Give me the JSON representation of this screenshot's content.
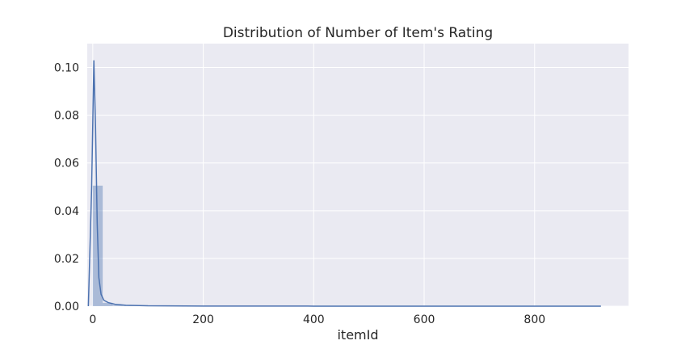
{
  "chart_data": {
    "type": "histogram",
    "title": "Distribution of Number of Item's Rating",
    "xlabel": "itemId",
    "ylabel": "",
    "xlim": [
      -10,
      970
    ],
    "ylim": [
      0,
      0.11
    ],
    "grid": true,
    "xticks": [
      0,
      200,
      400,
      600,
      800
    ],
    "xtick_labels": [
      "0",
      "200",
      "400",
      "600",
      "800"
    ],
    "yticks": [
      0.0,
      0.02,
      0.04,
      0.06,
      0.08,
      0.1
    ],
    "ytick_labels": [
      "0.00",
      "0.02",
      "0.04",
      "0.06",
      "0.08",
      "0.10"
    ],
    "bars": [
      {
        "x0": 0,
        "x1": 18,
        "density": 0.0505
      },
      {
        "x0": 18,
        "x1": 36,
        "density": 0.0014
      },
      {
        "x0": 36,
        "x1": 54,
        "density": 0.0004
      },
      {
        "x0": 54,
        "x1": 72,
        "density": 0.00015
      },
      {
        "x0": 72,
        "x1": 90,
        "density": 0.0001
      }
    ],
    "kde": {
      "x": [
        -8,
        -2,
        2,
        5,
        8,
        11,
        15,
        20,
        28,
        40,
        60,
        100,
        200,
        400,
        600,
        800,
        920
      ],
      "y": [
        0.0,
        0.05,
        0.103,
        0.075,
        0.035,
        0.012,
        0.005,
        0.0025,
        0.0015,
        0.0008,
        0.0004,
        0.00015,
        5e-05,
        2e-05,
        1e-05,
        5e-06,
        0.0
      ]
    },
    "colors": {
      "background": "#EAEAF2",
      "grid": "#FFFFFF",
      "bar": "#4C72B0",
      "line": "#4C72B0"
    }
  }
}
